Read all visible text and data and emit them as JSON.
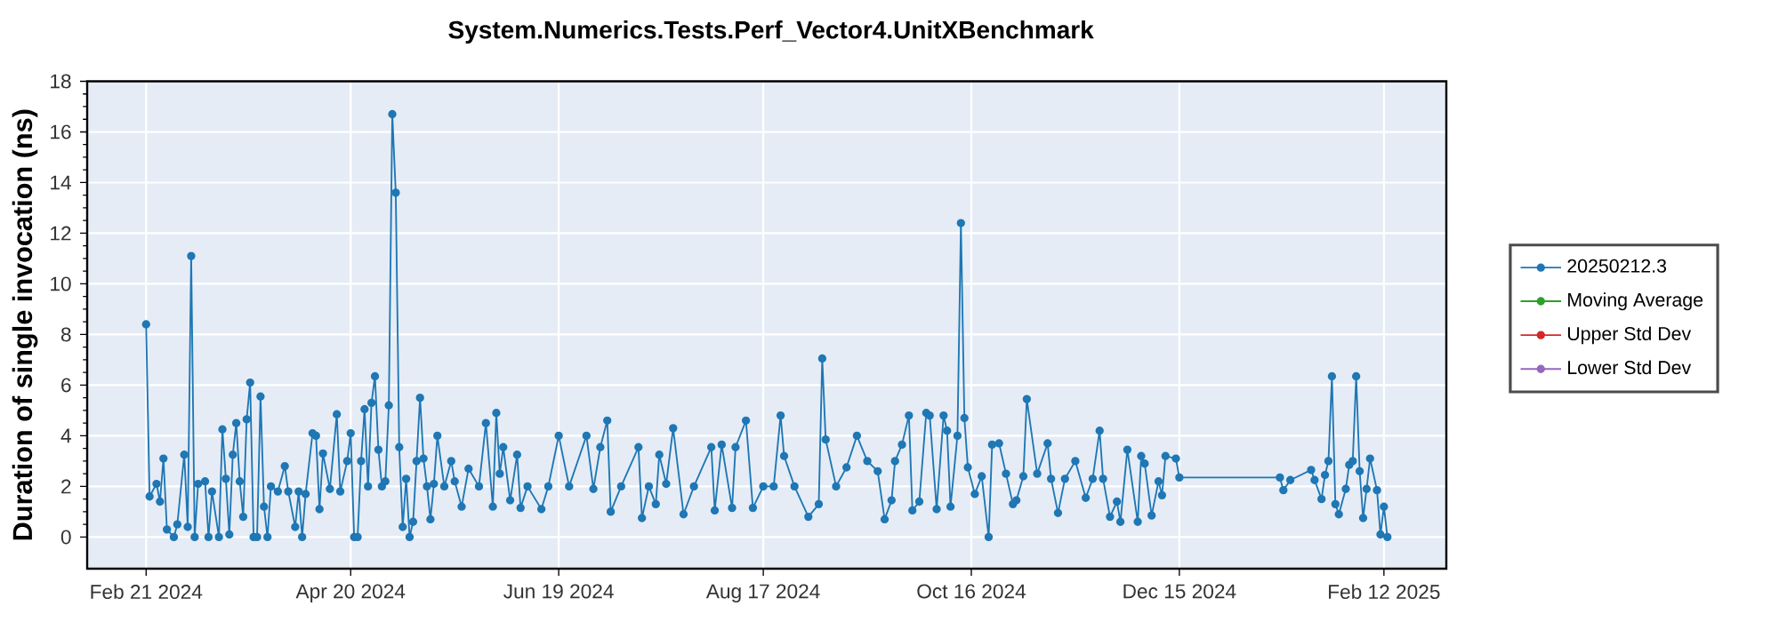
{
  "chart_data": {
    "type": "line",
    "title": "System.Numerics.Tests.Perf_Vector4.UnitXBenchmark",
    "ylabel": "Duration of single invocation (ns)",
    "xlim": [
      "2024-02-04",
      "2025-03-02"
    ],
    "xticks": [
      {
        "value": "2024-02-21",
        "label": "Feb 21 2024"
      },
      {
        "value": "2024-04-20",
        "label": "Apr 20 2024"
      },
      {
        "value": "2024-06-19",
        "label": "Jun 19 2024"
      },
      {
        "value": "2024-08-17",
        "label": "Aug 17 2024"
      },
      {
        "value": "2024-10-16",
        "label": "Oct 16 2024"
      },
      {
        "value": "2024-12-15",
        "label": "Dec 15 2024"
      },
      {
        "value": "2025-02-12",
        "label": "Feb 12 2025"
      }
    ],
    "ylim": [
      -1.25,
      18
    ],
    "yticks": [
      0,
      2,
      4,
      6,
      8,
      10,
      12,
      14,
      16,
      18
    ],
    "grid": true,
    "legend": "right",
    "marker": "circle",
    "line_style": "solid",
    "series": [
      {
        "name": "20250212.3",
        "color": "#1f77b4",
        "x": [
          "2024-02-21",
          "2024-02-22",
          "2024-02-24",
          "2024-02-25",
          "2024-02-26",
          "2024-02-27",
          "2024-02-29",
          "2024-03-01",
          "2024-03-03",
          "2024-03-04",
          "2024-03-05",
          "2024-03-06",
          "2024-03-07",
          "2024-03-09",
          "2024-03-10",
          "2024-03-11",
          "2024-03-13",
          "2024-03-14",
          "2024-03-15",
          "2024-03-16",
          "2024-03-17",
          "2024-03-18",
          "2024-03-19",
          "2024-03-20",
          "2024-03-21",
          "2024-03-22",
          "2024-03-23",
          "2024-03-24",
          "2024-03-25",
          "2024-03-26",
          "2024-03-27",
          "2024-03-28",
          "2024-03-30",
          "2024-04-01",
          "2024-04-02",
          "2024-04-04",
          "2024-04-05",
          "2024-04-06",
          "2024-04-07",
          "2024-04-09",
          "2024-04-10",
          "2024-04-11",
          "2024-04-12",
          "2024-04-14",
          "2024-04-16",
          "2024-04-17",
          "2024-04-19",
          "2024-04-20",
          "2024-04-21",
          "2024-04-22",
          "2024-04-23",
          "2024-04-24",
          "2024-04-25",
          "2024-04-26",
          "2024-04-27",
          "2024-04-28",
          "2024-04-29",
          "2024-04-30",
          "2024-05-01",
          "2024-05-02",
          "2024-05-03",
          "2024-05-04",
          "2024-05-05",
          "2024-05-06",
          "2024-05-07",
          "2024-05-08",
          "2024-05-09",
          "2024-05-10",
          "2024-05-11",
          "2024-05-12",
          "2024-05-13",
          "2024-05-14",
          "2024-05-15",
          "2024-05-17",
          "2024-05-19",
          "2024-05-20",
          "2024-05-22",
          "2024-05-24",
          "2024-05-27",
          "2024-05-29",
          "2024-05-31",
          "2024-06-01",
          "2024-06-02",
          "2024-06-03",
          "2024-06-05",
          "2024-06-07",
          "2024-06-08",
          "2024-06-10",
          "2024-06-14",
          "2024-06-16",
          "2024-06-19",
          "2024-06-22",
          "2024-06-27",
          "2024-06-29",
          "2024-07-01",
          "2024-07-03",
          "2024-07-04",
          "2024-07-07",
          "2024-07-12",
          "2024-07-13",
          "2024-07-15",
          "2024-07-17",
          "2024-07-18",
          "2024-07-20",
          "2024-07-22",
          "2024-07-25",
          "2024-07-28",
          "2024-08-02",
          "2024-08-03",
          "2024-08-05",
          "2024-08-08",
          "2024-08-09",
          "2024-08-12",
          "2024-08-14",
          "2024-08-17",
          "2024-08-20",
          "2024-08-22",
          "2024-08-23",
          "2024-08-26",
          "2024-08-30",
          "2024-09-02",
          "2024-09-03",
          "2024-09-04",
          "2024-09-07",
          "2024-09-10",
          "2024-09-13",
          "2024-09-16",
          "2024-09-19",
          "2024-09-21",
          "2024-09-23",
          "2024-09-24",
          "2024-09-26",
          "2024-09-28",
          "2024-09-29",
          "2024-10-01",
          "2024-10-03",
          "2024-10-04",
          "2024-10-06",
          "2024-10-08",
          "2024-10-09",
          "2024-10-10",
          "2024-10-12",
          "2024-10-13",
          "2024-10-14",
          "2024-10-15",
          "2024-10-17",
          "2024-10-19",
          "2024-10-21",
          "2024-10-22",
          "2024-10-24",
          "2024-10-26",
          "2024-10-28",
          "2024-10-29",
          "2024-10-31",
          "2024-11-01",
          "2024-11-04",
          "2024-11-07",
          "2024-11-08",
          "2024-11-10",
          "2024-11-12",
          "2024-11-15",
          "2024-11-18",
          "2024-11-20",
          "2024-11-22",
          "2024-11-23",
          "2024-11-25",
          "2024-11-27",
          "2024-11-28",
          "2024-11-30",
          "2024-12-03",
          "2024-12-04",
          "2024-12-05",
          "2024-12-07",
          "2024-12-09",
          "2024-12-10",
          "2024-12-11",
          "2024-12-14",
          "2024-12-15",
          "2025-01-13",
          "2025-01-14",
          "2025-01-16",
          "2025-01-22",
          "2025-01-23",
          "2025-01-25",
          "2025-01-26",
          "2025-01-27",
          "2025-01-28",
          "2025-01-29",
          "2025-01-30",
          "2025-02-01",
          "2025-02-02",
          "2025-02-03",
          "2025-02-04",
          "2025-02-05",
          "2025-02-06",
          "2025-02-07",
          "2025-02-08",
          "2025-02-10",
          "2025-02-11",
          "2025-02-12",
          "2025-02-13"
        ],
        "values": [
          8.4,
          1.6,
          2.1,
          1.4,
          3.1,
          0.3,
          0,
          0.5,
          3.25,
          0.4,
          11.1,
          0,
          2.1,
          2.2,
          0,
          1.8,
          0,
          4.25,
          2.3,
          0.1,
          3.25,
          4.5,
          2.2,
          0.8,
          4.65,
          6.1,
          0,
          0,
          5.55,
          1.2,
          0,
          2.0,
          1.8,
          2.8,
          1.8,
          0.4,
          1.8,
          0,
          1.7,
          4.1,
          4.0,
          1.1,
          3.3,
          1.9,
          4.85,
          1.8,
          3.0,
          4.1,
          0,
          0,
          3.0,
          5.05,
          2.0,
          5.3,
          6.35,
          3.45,
          2.0,
          2.2,
          5.2,
          16.7,
          13.6,
          3.55,
          0.4,
          2.3,
          0,
          0.6,
          3.0,
          5.5,
          3.1,
          2.0,
          0.7,
          2.1,
          4.0,
          2.0,
          3.0,
          2.2,
          1.2,
          2.7,
          2.0,
          4.5,
          1.2,
          4.9,
          2.5,
          3.55,
          1.45,
          3.25,
          1.15,
          2.0,
          1.1,
          2.0,
          4.0,
          2.0,
          4.0,
          1.9,
          3.55,
          4.6,
          1.0,
          2.0,
          3.55,
          0.75,
          2.0,
          1.3,
          3.25,
          2.1,
          4.3,
          0.9,
          2.0,
          3.55,
          1.05,
          3.65,
          1.15,
          3.55,
          4.6,
          1.15,
          2.0,
          2.0,
          4.8,
          3.2,
          2.0,
          0.8,
          1.3,
          7.05,
          3.85,
          2.0,
          2.75,
          4.0,
          3.0,
          2.6,
          0.7,
          1.45,
          3.0,
          3.65,
          4.8,
          1.05,
          1.4,
          4.9,
          4.8,
          1.1,
          4.8,
          4.2,
          1.2,
          4.0,
          12.4,
          4.7,
          2.75,
          1.7,
          2.4,
          0,
          3.65,
          3.7,
          2.5,
          1.3,
          1.45,
          2.4,
          5.45,
          2.5,
          3.7,
          2.3,
          0.95,
          2.3,
          3.0,
          1.55,
          2.3,
          4.2,
          2.3,
          0.8,
          1.4,
          0.6,
          3.45,
          0.6,
          3.2,
          2.9,
          0.85,
          2.2,
          1.65,
          3.2,
          3.1,
          2.35,
          2.35,
          1.85,
          2.25,
          2.65,
          2.25,
          1.5,
          2.45,
          3.0,
          6.35,
          1.3,
          0.9,
          1.9,
          2.85,
          3.0,
          6.35,
          2.6,
          0.75,
          1.9,
          3.1,
          1.85,
          0.1,
          1.2,
          0
        ]
      },
      {
        "name": "Moving Average",
        "color": "#2ca02c"
      },
      {
        "name": "Upper Std Dev",
        "color": "#d62728"
      },
      {
        "name": "Lower Std Dev",
        "color": "#9467bd"
      }
    ]
  }
}
